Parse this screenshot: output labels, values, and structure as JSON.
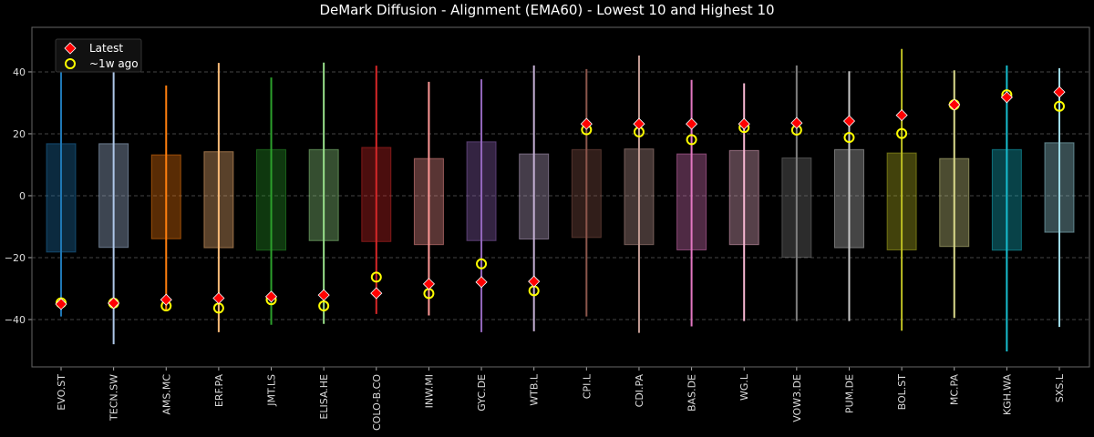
{
  "chart_data": {
    "type": "box-range-scatter",
    "title": "DeMark Diffusion - Alignment (EMA60) - Lowest 10 and Highest 10",
    "xlabel": "",
    "ylabel": "",
    "ylim": [
      -55.3,
      54.4
    ],
    "yticks": [
      -40,
      -20,
      0,
      20,
      40
    ],
    "grid": "y-dashed",
    "legend_position": "top-left",
    "legend": [
      {
        "label": "Latest",
        "marker": "red-diamond"
      },
      {
        "label": "~1w ago",
        "marker": "yellow-hollow-circle"
      }
    ],
    "categories": [
      "EVO.ST",
      "TECN.SW",
      "AMS.MC",
      "ERF.PA",
      "JMT.LS",
      "ELISA.HE",
      "COLO-B.CO",
      "INW.MI",
      "GYC.DE",
      "WTB.L",
      "CPI.L",
      "CDI.PA",
      "BAS.DE",
      "WG.L",
      "VOW3.DE",
      "PUM.DE",
      "BOL.ST",
      "MC.PA",
      "KGH.WA",
      "SXS.L"
    ],
    "colors": [
      "#1f77b4",
      "#aec7e8",
      "#ff7f0e",
      "#ffbb78",
      "#2ca02c",
      "#98df8a",
      "#d62728",
      "#ff9896",
      "#9467bd",
      "#c5b0d5",
      "#8c564b",
      "#c49c94",
      "#e377c2",
      "#f7b6d2",
      "#7f7f7f",
      "#c7c7c7",
      "#bcbd22",
      "#dbdb8d",
      "#17becf",
      "#9edae5"
    ],
    "whisker_max": [
      49,
      41.4,
      35.6,
      42.9,
      38.2,
      43,
      42,
      36.8,
      37.6,
      42.1,
      40.9,
      45.3,
      37.4,
      36.3,
      42.1,
      40.2,
      47.4,
      40.5,
      42.1,
      41.2
    ],
    "whisker_min": [
      -39,
      -48,
      -37.3,
      -44.1,
      -41.7,
      -41.4,
      -38.2,
      -38.7,
      -44.1,
      -43.8,
      -39,
      -44.3,
      -42.2,
      -40.5,
      -40.5,
      -40.5,
      -43.6,
      -39.5,
      -50.3,
      -42.4
    ],
    "box_high": [
      16.8,
      16.8,
      13.2,
      14.2,
      14.9,
      14.9,
      15.6,
      12,
      17.4,
      13.5,
      14.9,
      15.1,
      13.5,
      14.6,
      12.2,
      14.9,
      13.8,
      12,
      14.9,
      17.1
    ],
    "box_low": [
      -18.2,
      -16.7,
      -13.9,
      -16.8,
      -17.6,
      -14.5,
      -14.8,
      -15.8,
      -14.5,
      -14,
      -13.5,
      -15.8,
      -17.5,
      -15.8,
      -19.9,
      -16.8,
      -17.5,
      -16.4,
      -17.6,
      -11.8
    ],
    "latest": [
      -35,
      -34.7,
      -33.6,
      -33.1,
      -32.6,
      -32.1,
      -31.5,
      -28.5,
      -27.9,
      -27.7,
      23.2,
      23.2,
      23.2,
      23.2,
      23.5,
      24.1,
      26,
      29.4,
      31.8,
      33.5
    ],
    "week_ago": [
      -34.6,
      -34.7,
      -35.6,
      -36.3,
      -33.6,
      -35.6,
      -26.3,
      -31.6,
      -22,
      -30.7,
      21.3,
      20.6,
      18.1,
      22,
      21.2,
      18.8,
      20.1,
      29.4,
      32.6,
      28.9
    ]
  }
}
